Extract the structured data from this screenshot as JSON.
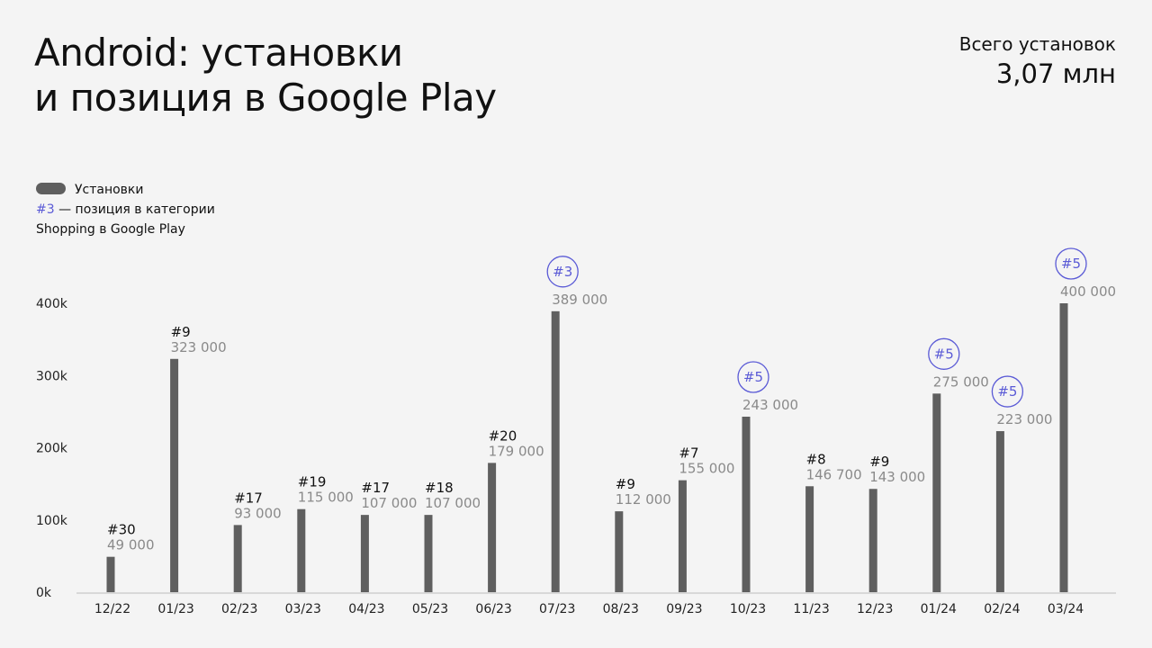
{
  "title_line1": "Android: установки",
  "title_line2": "и позиция в Google Play",
  "total": {
    "label": "Всего установок",
    "value": "3,07 млн"
  },
  "legend": {
    "installs": "Установки",
    "rank_example": "#3",
    "rank_text": " — позиция в категории",
    "rank_text2": "Shopping в Google Play"
  },
  "colors": {
    "bar": "#5f5f5f",
    "accent": "#5a5ad6",
    "background": "#f4f4f4"
  },
  "chart_data": {
    "type": "bar",
    "categories": [
      "12/22",
      "01/23",
      "02/23",
      "03/23",
      "04/23",
      "05/23",
      "06/23",
      "07/23",
      "08/23",
      "09/23",
      "10/23",
      "11/23",
      "12/23",
      "01/24",
      "02/24",
      "03/24"
    ],
    "values": [
      49000,
      323000,
      93000,
      115000,
      107000,
      107000,
      179000,
      389000,
      112000,
      155000,
      243000,
      146700,
      143000,
      275000,
      223000,
      400000
    ],
    "value_labels": [
      "49 000",
      "323 000",
      "93 000",
      "115 000",
      "107 000",
      "107 000",
      "179 000",
      "389 000",
      "112 000",
      "155 000",
      "243 000",
      "146 700",
      "143 000",
      "275 000",
      "223 000",
      "400 000"
    ],
    "ranks": [
      "#30",
      "#9",
      "#17",
      "#19",
      "#17",
      "#18",
      "#20",
      "#3",
      "#9",
      "#7",
      "#5",
      "#8",
      "#9",
      "#5",
      "#5",
      "#5"
    ],
    "ranks_highlighted": [
      false,
      false,
      false,
      false,
      false,
      false,
      false,
      true,
      false,
      false,
      true,
      false,
      false,
      true,
      true,
      true
    ],
    "yticks": [
      "0k",
      "100k",
      "200k",
      "300k",
      "400k"
    ],
    "ytick_values": [
      0,
      100000,
      200000,
      300000,
      400000
    ],
    "ylim": [
      0,
      400000
    ],
    "grid": true,
    "legend_position": "top-left"
  }
}
